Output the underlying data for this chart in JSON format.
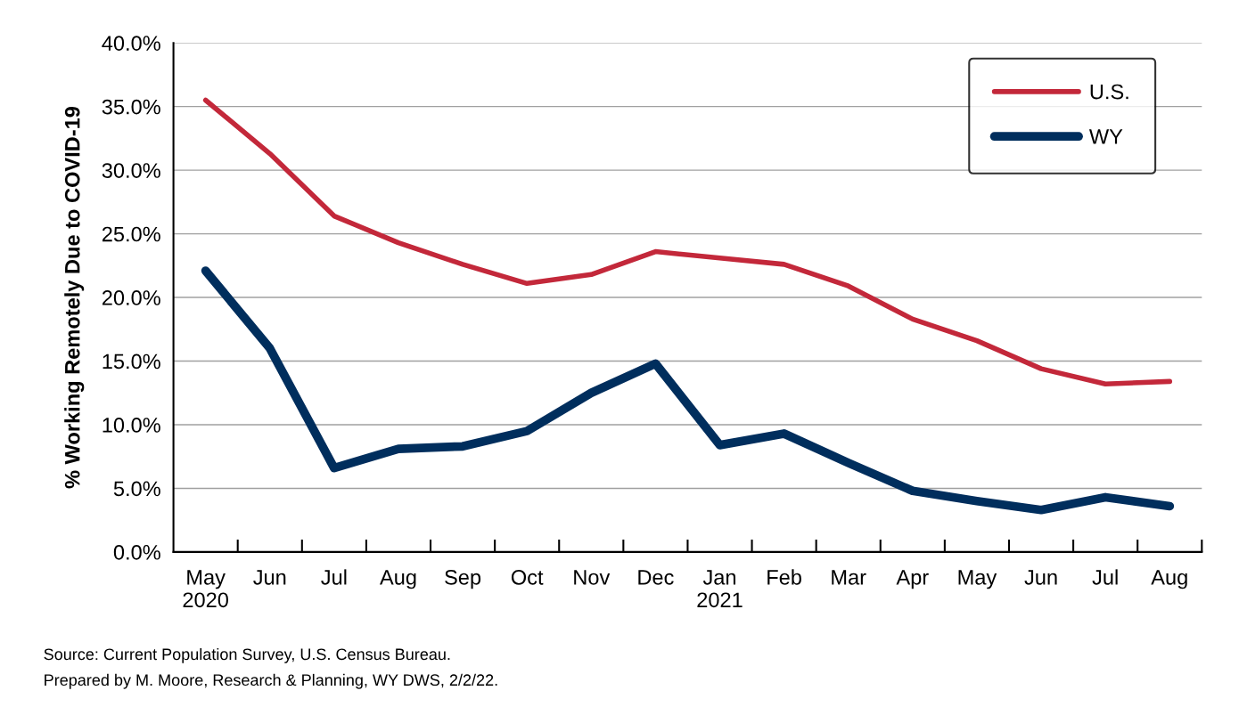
{
  "chart_data": {
    "type": "line",
    "ylabel": "% Working Remotely Due to COVID-19",
    "categories": [
      "May\n2020",
      "Jun",
      "Jul",
      "Aug",
      "Sep",
      "Oct",
      "Nov",
      "Dec",
      "Jan\n2021",
      "Feb",
      "Mar",
      "Apr",
      "May",
      "Jun",
      "Jul",
      "Aug"
    ],
    "series": [
      {
        "name": "U.S.",
        "color": "#c3283a",
        "values": [
          35.5,
          31.3,
          26.4,
          24.3,
          22.6,
          21.1,
          21.8,
          23.6,
          23.1,
          22.6,
          20.9,
          18.3,
          16.6,
          14.4,
          13.2,
          13.4
        ]
      },
      {
        "name": "WY",
        "color": "#002e5d",
        "values": [
          22.1,
          16.0,
          6.6,
          8.1,
          8.3,
          9.5,
          12.5,
          14.8,
          8.4,
          9.3,
          7.0,
          4.8,
          4.0,
          3.3,
          4.3,
          3.6
        ]
      }
    ],
    "ylim": [
      0,
      40
    ],
    "yticks": [
      {
        "value": 0,
        "label": "0.0%"
      },
      {
        "value": 5,
        "label": "5.0%"
      },
      {
        "value": 10,
        "label": "10.0%"
      },
      {
        "value": 15,
        "label": "15.0%"
      },
      {
        "value": 20,
        "label": "20.0%"
      },
      {
        "value": 25,
        "label": "25.0%"
      },
      {
        "value": 30,
        "label": "30.0%"
      },
      {
        "value": 35,
        "label": "35.0%"
      },
      {
        "value": 40,
        "label": "40.0%"
      }
    ],
    "grid": "y",
    "legend": "top right",
    "marker": "none",
    "line_style": "solid",
    "annotations": [
      "Source: Current Population Survey, U.S. Census Bureau.",
      "Prepared by M. Moore, Research & Planning, WY DWS, 2/2/22."
    ]
  }
}
